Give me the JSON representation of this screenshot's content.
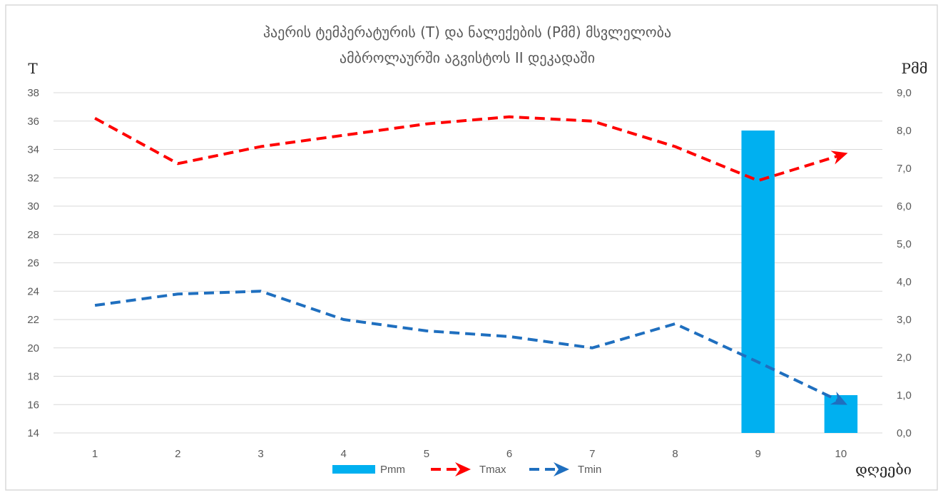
{
  "chart_data": {
    "type": "bar+line",
    "title_lines": [
      "ჰაერის ტემპერატურის (T) და ნალექების (Pმმ) მსვლელობა",
      "ამბროლაურში აგვისტოს II დეკადაში"
    ],
    "xlabel": "დღეები",
    "ylabel_left": "T",
    "ylabel_right": "Pმმ",
    "categories": [
      "1",
      "2",
      "3",
      "4",
      "5",
      "6",
      "7",
      "8",
      "9",
      "10"
    ],
    "y_left": {
      "min": 14,
      "max": 38,
      "step": 2,
      "ticks": [
        "14",
        "16",
        "18",
        "20",
        "22",
        "24",
        "26",
        "28",
        "30",
        "32",
        "34",
        "36",
        "38"
      ]
    },
    "y_right": {
      "min": 0,
      "max": 9,
      "step": 1,
      "ticks": [
        "0,0",
        "1,0",
        "2,0",
        "3,0",
        "4,0",
        "5,0",
        "6,0",
        "7,0",
        "8,0",
        "9,0"
      ]
    },
    "grid": true,
    "legend_position": "bottom",
    "series": [
      {
        "name": "Pmm",
        "kind": "bar",
        "axis": "right",
        "color": "#00b0f0",
        "values": [
          0,
          0,
          0,
          0,
          0,
          0,
          0,
          0,
          8.0,
          1.0
        ]
      },
      {
        "name": "Tmax",
        "kind": "line",
        "axis": "left",
        "color": "#ff0000",
        "dashed": true,
        "values": [
          36.2,
          33.0,
          34.2,
          35.0,
          35.8,
          36.3,
          36.0,
          34.2,
          31.8,
          33.6
        ]
      },
      {
        "name": "Tmin",
        "kind": "line",
        "axis": "left",
        "color": "#1f6fbf",
        "dashed": true,
        "values": [
          23.0,
          23.8,
          24.0,
          22.0,
          21.2,
          20.8,
          20.0,
          21.7,
          19.0,
          16.2
        ]
      }
    ]
  }
}
